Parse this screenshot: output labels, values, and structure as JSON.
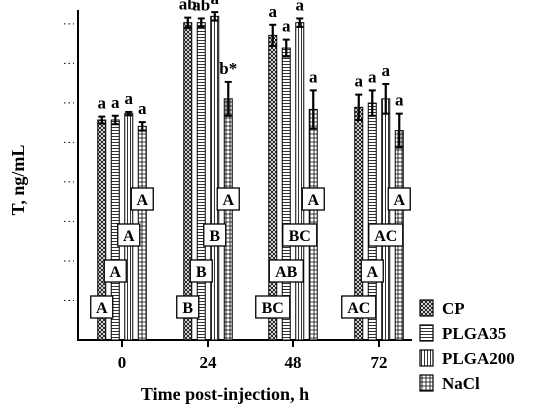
{
  "chart_data": {
    "type": "bar",
    "title": "",
    "xlabel": "Time post-injection, h",
    "ylabel": "T, ng/mL",
    "categories": [
      "0",
      "24",
      "48",
      "72"
    ],
    "ylim": [
      0,
      7.8
    ],
    "y_tick_count": 8,
    "y_tick_labels_shown": false,
    "grid": false,
    "legend_position": "bottom-right outside",
    "series": [
      {
        "name": "CP",
        "pattern": "crosshatch",
        "values": [
          5.2,
          7.5,
          7.2,
          5.5
        ],
        "errors": [
          0.08,
          0.12,
          0.25,
          0.3
        ],
        "top_labels": [
          "a",
          "ab",
          "a",
          "a"
        ],
        "box_labels": [
          "A",
          "B",
          "BC",
          "AC"
        ]
      },
      {
        "name": "PLGA35",
        "pattern": "horizontal",
        "values": [
          5.2,
          7.5,
          6.9,
          5.6
        ],
        "errors": [
          0.1,
          0.1,
          0.2,
          0.3
        ],
        "top_labels": [
          "a",
          "ab",
          "a",
          "a"
        ],
        "box_labels": [
          "A",
          "B",
          "AB",
          "A"
        ]
      },
      {
        "name": "PLGA200",
        "pattern": "vertical",
        "values": [
          5.35,
          7.65,
          7.5,
          5.7
        ],
        "errors": [
          0.04,
          0.1,
          0.1,
          0.35
        ],
        "top_labels": [
          "a",
          "a",
          "a",
          "a"
        ],
        "box_labels": [
          "A",
          "B",
          "BC",
          "AC"
        ]
      },
      {
        "name": "NaCl",
        "pattern": "grid",
        "values": [
          5.05,
          5.7,
          5.45,
          4.95
        ],
        "errors": [
          0.1,
          0.4,
          0.45,
          0.4
        ],
        "top_labels": [
          "a",
          "b*",
          "a",
          "a"
        ],
        "box_labels": [
          "A",
          "A",
          "A",
          "A"
        ]
      }
    ]
  }
}
